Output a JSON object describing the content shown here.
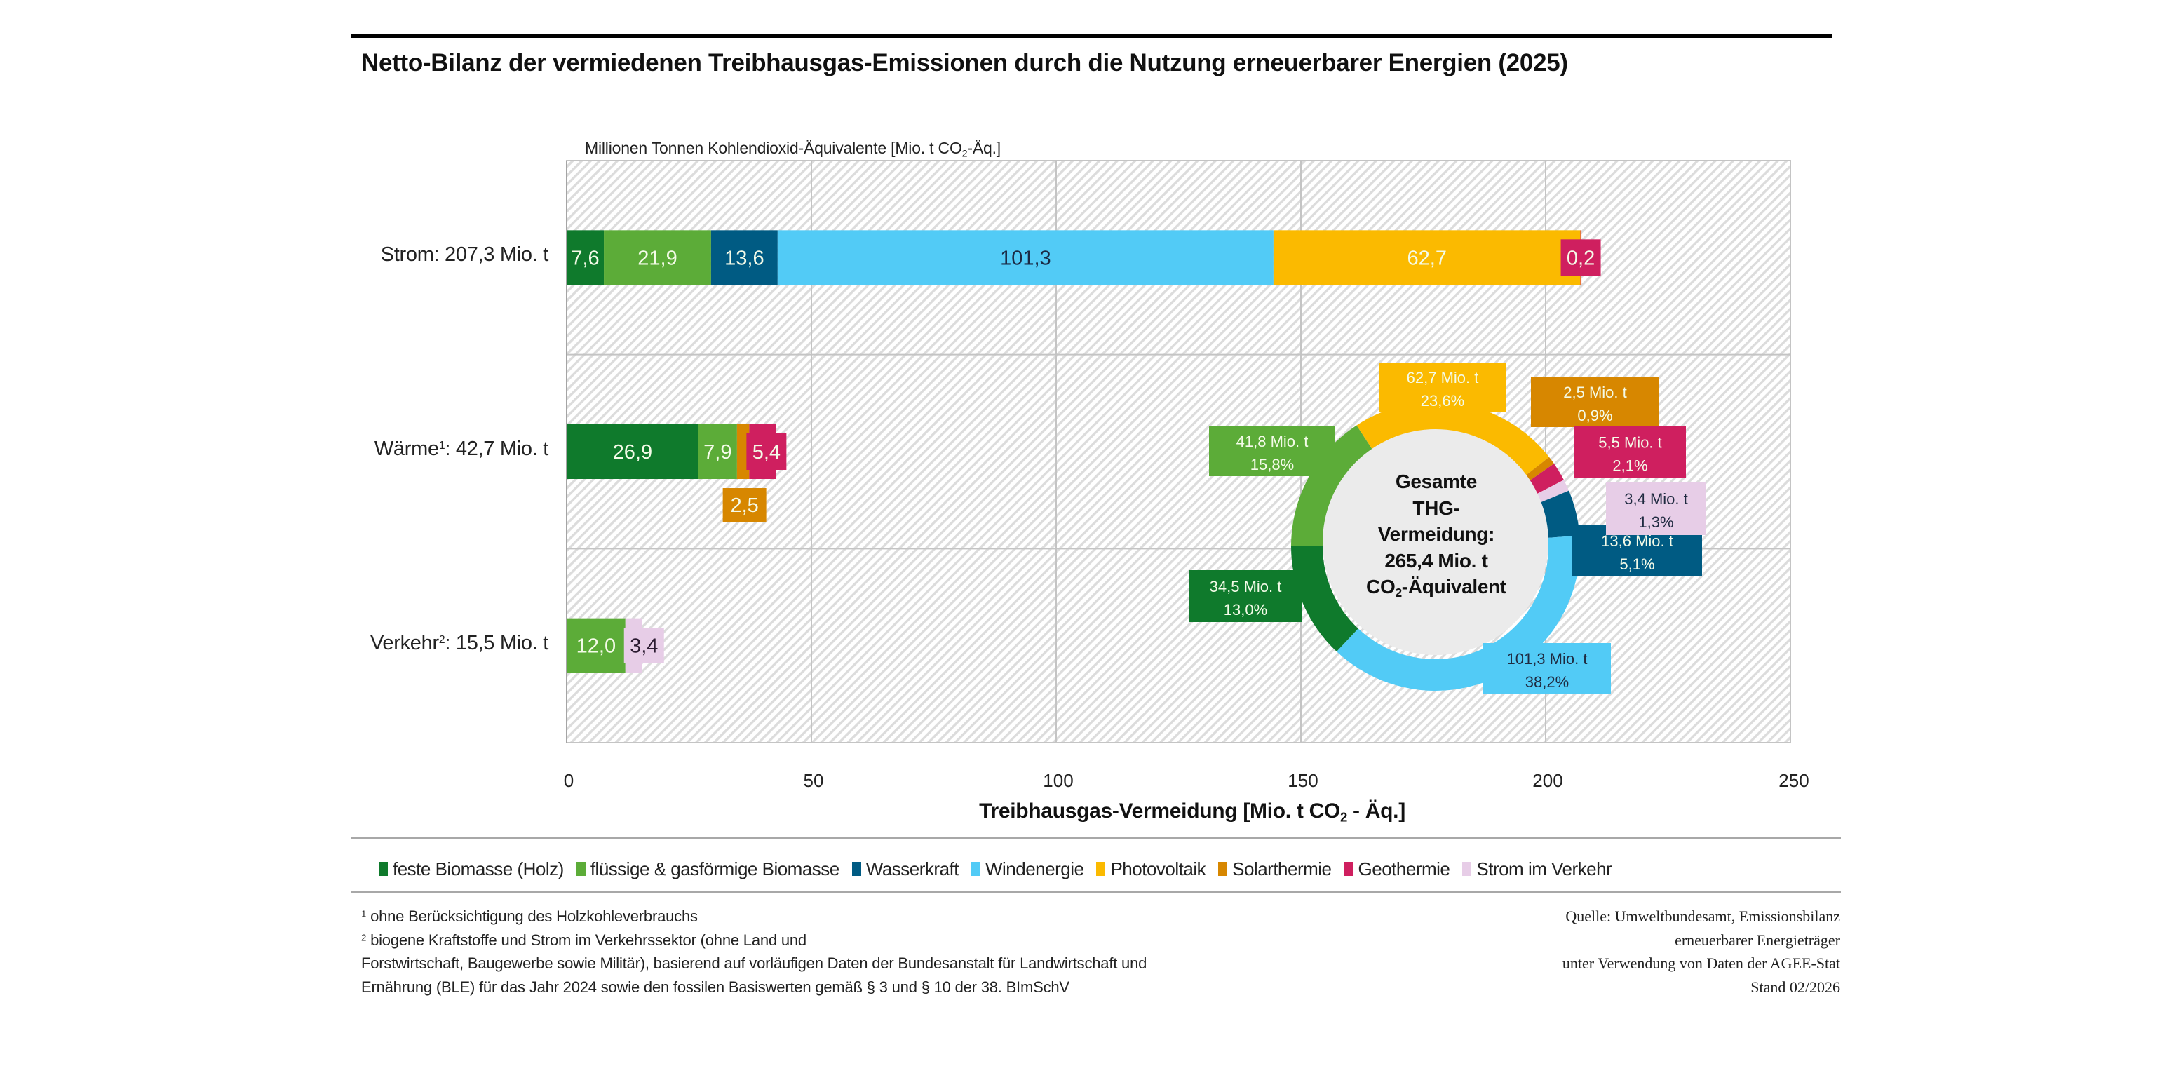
{
  "title": "Netto-Bilanz der vermiedenen Treibhausgas-Emissionen durch die Nutzung erneuerbarer Energien (2025)",
  "unit_label": {
    "pre": "Millionen Tonnen Kohlendioxid-Äquivalente [Mio. t CO",
    "sub": "2",
    "post": "-Äq.]"
  },
  "x_title": {
    "pre": "Treibhausgas-Vermeidung [Mio. t CO",
    "sub": "2",
    "post": " - Äq.]"
  },
  "colors": {
    "feste Biomasse (Holz)": "#0f7a2c",
    "flüssige & gasförmige Biomasse": "#5cac38",
    "Wasserkraft": "#005b83",
    "Windenergie": "#52cbf6",
    "Photovoltaik": "#fbba00",
    "Solarthermie": "#d78700",
    "Geothermie": "#cf1f5f",
    "Strom im Verkehr": "#e7cde7"
  },
  "chart_data": [
    {
      "type": "bar",
      "orientation": "horizontal",
      "stacked": true,
      "title": "Netto-Bilanz der vermiedenen Treibhausgas-Emissionen durch die Nutzung erneuerbarer Energien (2025)",
      "xlabel": "Treibhausgas-Vermeidung [Mio. t CO2 - Äq.]",
      "ylabel": "Millionen Tonnen Kohlendioxid-Äquivalente [Mio. t CO2-Äq.]",
      "xlim": [
        0,
        250
      ],
      "xticks": [
        0,
        50,
        100,
        150,
        200,
        250
      ],
      "xtick_labels": [
        "0",
        "50",
        "100",
        "150",
        "200",
        "250"
      ],
      "grid": true,
      "categories": [
        {
          "name": "Strom",
          "label": "Strom: 207,3 Mio. t",
          "sup": ""
        },
        {
          "name": "Wärme",
          "label_pre": "Wärme",
          "sup": "1",
          "label_post": ": 42,7 Mio. t"
        },
        {
          "name": "Verkehr",
          "label_pre": "Verkehr",
          "sup": "2",
          "label_post": ": 15,5 Mio. t"
        }
      ],
      "series": [
        {
          "name": "feste Biomasse (Holz)",
          "values": [
            7.6,
            26.9,
            0
          ],
          "labels": [
            "7,6",
            "26,9",
            ""
          ]
        },
        {
          "name": "flüssige & gasförmige Biomasse",
          "values": [
            21.9,
            7.9,
            12.0
          ],
          "labels": [
            "21,9",
            "7,9",
            "12,0"
          ]
        },
        {
          "name": "Wasserkraft",
          "values": [
            13.6,
            0,
            0
          ],
          "labels": [
            "13,6",
            "",
            ""
          ]
        },
        {
          "name": "Windenergie",
          "values": [
            101.3,
            0,
            0
          ],
          "labels": [
            "101,3",
            "",
            ""
          ]
        },
        {
          "name": "Photovoltaik",
          "values": [
            62.7,
            0,
            0
          ],
          "labels": [
            "62,7",
            "",
            ""
          ]
        },
        {
          "name": "Solarthermie",
          "values": [
            0,
            2.5,
            0
          ],
          "labels": [
            "",
            "2,5",
            ""
          ]
        },
        {
          "name": "Geothermie",
          "values": [
            0.2,
            5.4,
            0
          ],
          "labels": [
            "0,2",
            "5,4",
            ""
          ]
        },
        {
          "name": "Strom im Verkehr",
          "values": [
            0,
            0,
            3.4
          ],
          "labels": [
            "",
            "",
            "3,4"
          ]
        }
      ],
      "legend": {
        "position": "bottom",
        "entries": [
          "feste Biomasse (Holz)",
          "flüssige & gasförmige Biomasse",
          "Wasserkraft",
          "Windenergie",
          "Photovoltaik",
          "Solarthermie",
          "Geothermie",
          "Strom im Verkehr"
        ]
      }
    },
    {
      "type": "pie",
      "donut": true,
      "center_text": [
        "Gesamte",
        "THG-",
        "Vermeidung:",
        "265,4 Mio. t"
      ],
      "center_text_last": {
        "pre": "CO",
        "sub": "2",
        "post": "-Äquivalent"
      },
      "total": 265.4,
      "slices": [
        {
          "name": "feste Biomasse (Holz)",
          "value": 34.5,
          "percent": 13.0,
          "label1": "34,5 Mio. t",
          "label2": "13,0%"
        },
        {
          "name": "flüssige & gasförmige Biomasse",
          "value": 41.8,
          "percent": 15.8,
          "label1": "41,8 Mio. t",
          "label2": "15,8%"
        },
        {
          "name": "Photovoltaik",
          "value": 62.7,
          "percent": 23.6,
          "label1": "62,7 Mio. t",
          "label2": "23,6%"
        },
        {
          "name": "Solarthermie",
          "value": 2.5,
          "percent": 0.9,
          "label1": "2,5 Mio. t",
          "label2": "0,9%"
        },
        {
          "name": "Geothermie",
          "value": 5.5,
          "percent": 2.1,
          "label1": "5,5 Mio. t",
          "label2": "2,1%"
        },
        {
          "name": "Strom im Verkehr",
          "value": 3.4,
          "percent": 1.3,
          "label1": "3,4 Mio. t",
          "label2": "1,3%"
        },
        {
          "name": "Wasserkraft",
          "value": 13.6,
          "percent": 5.1,
          "label1": "13,6 Mio. t",
          "label2": "5,1%"
        },
        {
          "name": "Windenergie",
          "value": 101.3,
          "percent": 38.2,
          "label1": "101,3 Mio. t",
          "label2": "38,2%"
        }
      ]
    }
  ],
  "legend_labels": [
    "feste Biomasse (Holz)",
    "flüssige & gasförmige Biomasse",
    "Wasserkraft",
    "Windenergie",
    "Photovoltaik",
    "Solarthermie",
    "Geothermie",
    "Strom im Verkehr"
  ],
  "footnotes": {
    "n1_sup": "1",
    "n1": "ohne Berücksichtigung des Holzkohleverbrauchs",
    "n2_sup": "2",
    "n2_line1": "biogene Kraftstoffe und Strom im Verkehrssektor (ohne Land und",
    "n2_line2": "Forstwirtschaft, Baugewerbe sowie Militär), basierend auf vorläufigen Daten der Bundesanstalt für Landwirtschaft und",
    "n2_line3": "Ernährung (BLE) für das Jahr 2024  sowie den fossilen Basiswerten gemäß § 3 und § 10 der 38. BImSchV"
  },
  "source": {
    "line1": "Quelle: Umweltbundesamt, Emissionsbilanz",
    "line2": "erneuerbarer Energieträger",
    "line3": "unter Verwendung von Daten der AGEE-Stat",
    "line4": "Stand 02/2026"
  }
}
